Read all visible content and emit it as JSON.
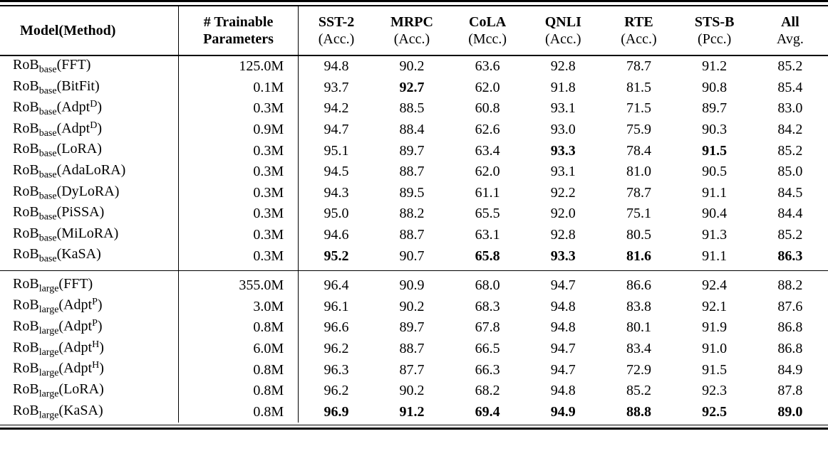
{
  "page": {
    "background": "#ffffff",
    "text_color": "#000000"
  },
  "table": {
    "header": {
      "model": "Model(Method)",
      "params": [
        "# Trainable",
        "Parameters"
      ],
      "tasks": [
        {
          "name": "SST-2",
          "metric": "(Acc.)"
        },
        {
          "name": "MRPC",
          "metric": "(Acc.)"
        },
        {
          "name": "CoLA",
          "metric": "(Mcc.)"
        },
        {
          "name": "QNLI",
          "metric": "(Acc.)"
        },
        {
          "name": "RTE",
          "metric": "(Acc.)"
        },
        {
          "name": "STS-B",
          "metric": "(Pcc.)"
        },
        {
          "name": "All",
          "metric": "Avg."
        }
      ]
    },
    "sections": [
      {
        "rows": [
          {
            "model": "RoB",
            "size": "base",
            "method": "FFT",
            "sup": "",
            "params": "125.0M",
            "values": [
              "94.8",
              "90.2",
              "63.6",
              "92.8",
              "78.7",
              "91.2",
              "85.2"
            ],
            "bold": []
          },
          {
            "model": "RoB",
            "size": "base",
            "method": "BitFit",
            "sup": "",
            "params": "0.1M",
            "values": [
              "93.7",
              "92.7",
              "62.0",
              "91.8",
              "81.5",
              "90.8",
              "85.4"
            ],
            "bold": [
              1
            ]
          },
          {
            "model": "RoB",
            "size": "base",
            "method": "Adpt",
            "sup": "D",
            "params": "0.3M",
            "values": [
              "94.2",
              "88.5",
              "60.8",
              "93.1",
              "71.5",
              "89.7",
              "83.0"
            ],
            "bold": []
          },
          {
            "model": "RoB",
            "size": "base",
            "method": "Adpt",
            "sup": "D",
            "params": "0.9M",
            "values": [
              "94.7",
              "88.4",
              "62.6",
              "93.0",
              "75.9",
              "90.3",
              "84.2"
            ],
            "bold": []
          },
          {
            "model": "RoB",
            "size": "base",
            "method": "LoRA",
            "sup": "",
            "params": "0.3M",
            "values": [
              "95.1",
              "89.7",
              "63.4",
              "93.3",
              "78.4",
              "91.5",
              "85.2"
            ],
            "bold": [
              3,
              5
            ]
          },
          {
            "model": "RoB",
            "size": "base",
            "method": "AdaLoRA",
            "sup": "",
            "params": "0.3M",
            "values": [
              "94.5",
              "88.7",
              "62.0",
              "93.1",
              "81.0",
              "90.5",
              "85.0"
            ],
            "bold": []
          },
          {
            "model": "RoB",
            "size": "base",
            "method": "DyLoRA",
            "sup": "",
            "params": "0.3M",
            "values": [
              "94.3",
              "89.5",
              "61.1",
              "92.2",
              "78.7",
              "91.1",
              "84.5"
            ],
            "bold": []
          },
          {
            "model": "RoB",
            "size": "base",
            "method": "PiSSA",
            "sup": "",
            "params": "0.3M",
            "values": [
              "95.0",
              "88.2",
              "65.5",
              "92.0",
              "75.1",
              "90.4",
              "84.4"
            ],
            "bold": []
          },
          {
            "model": "RoB",
            "size": "base",
            "method": "MiLoRA",
            "sup": "",
            "params": "0.3M",
            "values": [
              "94.6",
              "88.7",
              "63.1",
              "92.8",
              "80.5",
              "91.3",
              "85.2"
            ],
            "bold": []
          },
          {
            "model": "RoB",
            "size": "base",
            "method": "KaSA",
            "sup": "",
            "params": "0.3M",
            "values": [
              "95.2",
              "90.7",
              "65.8",
              "93.3",
              "81.6",
              "91.1",
              "86.3"
            ],
            "bold": [
              0,
              2,
              3,
              4,
              6
            ]
          }
        ]
      },
      {
        "rows": [
          {
            "model": "RoB",
            "size": "large",
            "method": "FFT",
            "sup": "",
            "params": "355.0M",
            "values": [
              "96.4",
              "90.9",
              "68.0",
              "94.7",
              "86.6",
              "92.4",
              "88.2"
            ],
            "bold": []
          },
          {
            "model": "RoB",
            "size": "large",
            "method": "Adpt",
            "sup": "P",
            "params": "3.0M",
            "values": [
              "96.1",
              "90.2",
              "68.3",
              "94.8",
              "83.8",
              "92.1",
              "87.6"
            ],
            "bold": []
          },
          {
            "model": "RoB",
            "size": "large",
            "method": "Adpt",
            "sup": "P",
            "params": "0.8M",
            "values": [
              "96.6",
              "89.7",
              "67.8",
              "94.8",
              "80.1",
              "91.9",
              "86.8"
            ],
            "bold": []
          },
          {
            "model": "RoB",
            "size": "large",
            "method": "Adpt",
            "sup": "H",
            "params": "6.0M",
            "values": [
              "96.2",
              "88.7",
              "66.5",
              "94.7",
              "83.4",
              "91.0",
              "86.8"
            ],
            "bold": []
          },
          {
            "model": "RoB",
            "size": "large",
            "method": "Adpt",
            "sup": "H",
            "params": "0.8M",
            "values": [
              "96.3",
              "87.7",
              "66.3",
              "94.7",
              "72.9",
              "91.5",
              "84.9"
            ],
            "bold": []
          },
          {
            "model": "RoB",
            "size": "large",
            "method": "LoRA",
            "sup": "",
            "params": "0.8M",
            "values": [
              "96.2",
              "90.2",
              "68.2",
              "94.8",
              "85.2",
              "92.3",
              "87.8"
            ],
            "bold": []
          },
          {
            "model": "RoB",
            "size": "large",
            "method": "KaSA",
            "sup": "",
            "params": "0.8M",
            "values": [
              "96.9",
              "91.2",
              "69.4",
              "94.9",
              "88.8",
              "92.5",
              "89.0"
            ],
            "bold": [
              0,
              1,
              2,
              3,
              4,
              5,
              6
            ]
          }
        ]
      }
    ]
  }
}
